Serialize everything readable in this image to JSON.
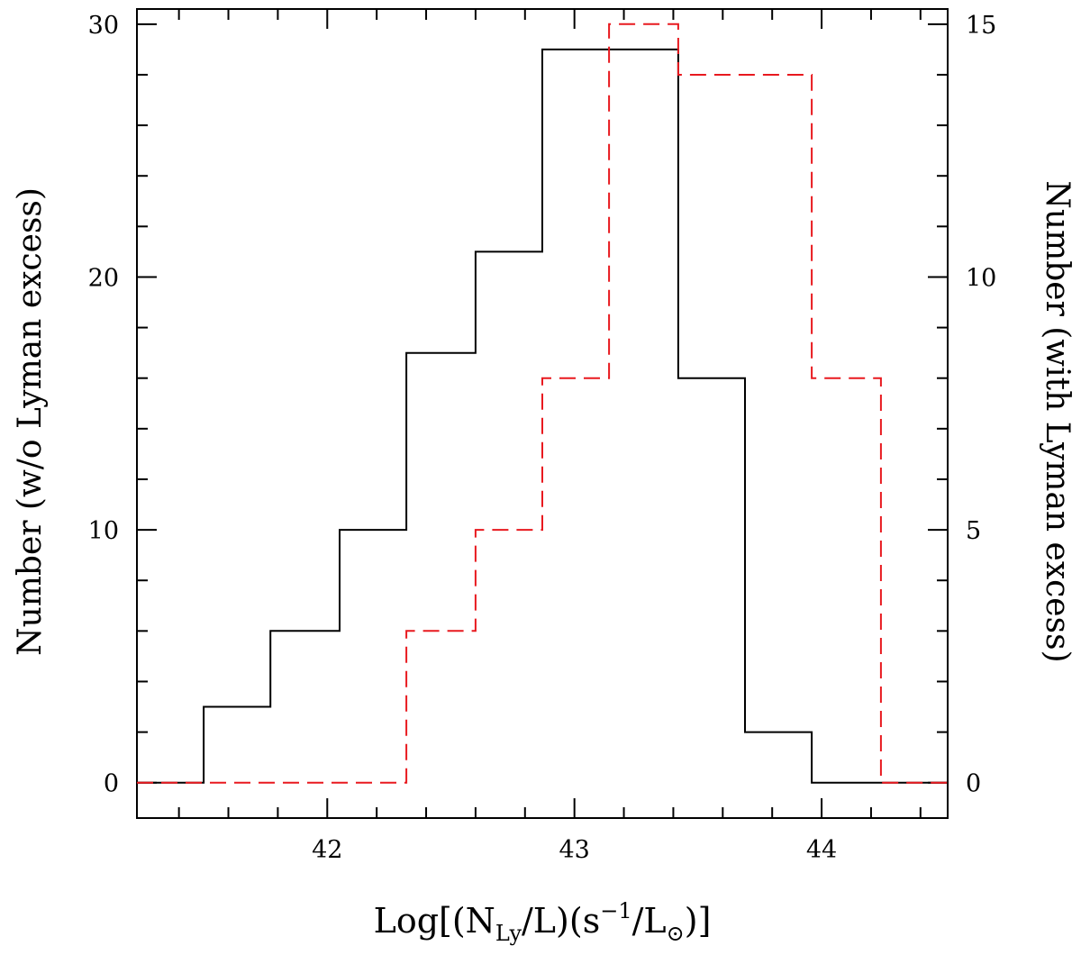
{
  "chart_data": {
    "type": "histogram",
    "bin_edges": [
      41.23,
      41.5,
      41.77,
      42.05,
      42.32,
      42.6,
      42.87,
      43.14,
      43.42,
      43.69,
      43.96,
      44.24,
      44.51
    ],
    "x_range": [
      41.23,
      44.51
    ],
    "x_ticks": [
      42,
      43,
      44
    ],
    "x_tick_labels": [
      "42",
      "43",
      "44"
    ],
    "x_minor_step": 0.2,
    "ylim_left": [
      -1.4,
      30.6
    ],
    "y_ticks_left": [
      0,
      10,
      20,
      30
    ],
    "y_tick_labels_left": [
      "0",
      "10",
      "20",
      "30"
    ],
    "y_minor_step_left": 2,
    "ylim_right": [
      -0.7,
      15.3
    ],
    "y_ticks_right": [
      0,
      5,
      10,
      15
    ],
    "y_tick_labels_right": [
      "0",
      "5",
      "10",
      "15"
    ],
    "y_minor_step_right": 1,
    "ylabel_left": "Number (w/o Lyman excess)",
    "ylabel_right": "Number (with Lyman excess)",
    "xlabel": {
      "prefix": "Log[(N",
      "sub1": "Ly",
      "mid": "/L)(s",
      "sup": "−1",
      "mid2": "/L",
      "sub2": "⊙",
      "suffix": ")]"
    },
    "series": [
      {
        "axis": "left",
        "style": "solid",
        "color": "#000000",
        "values": [
          0,
          3,
          6,
          10,
          17,
          21,
          29,
          29,
          16,
          2,
          0,
          0
        ]
      },
      {
        "axis": "right",
        "style": "dashed",
        "color": "#e8191f",
        "values": [
          0,
          0,
          0,
          0,
          3,
          5,
          8,
          15,
          14,
          14,
          8,
          0
        ]
      }
    ]
  }
}
